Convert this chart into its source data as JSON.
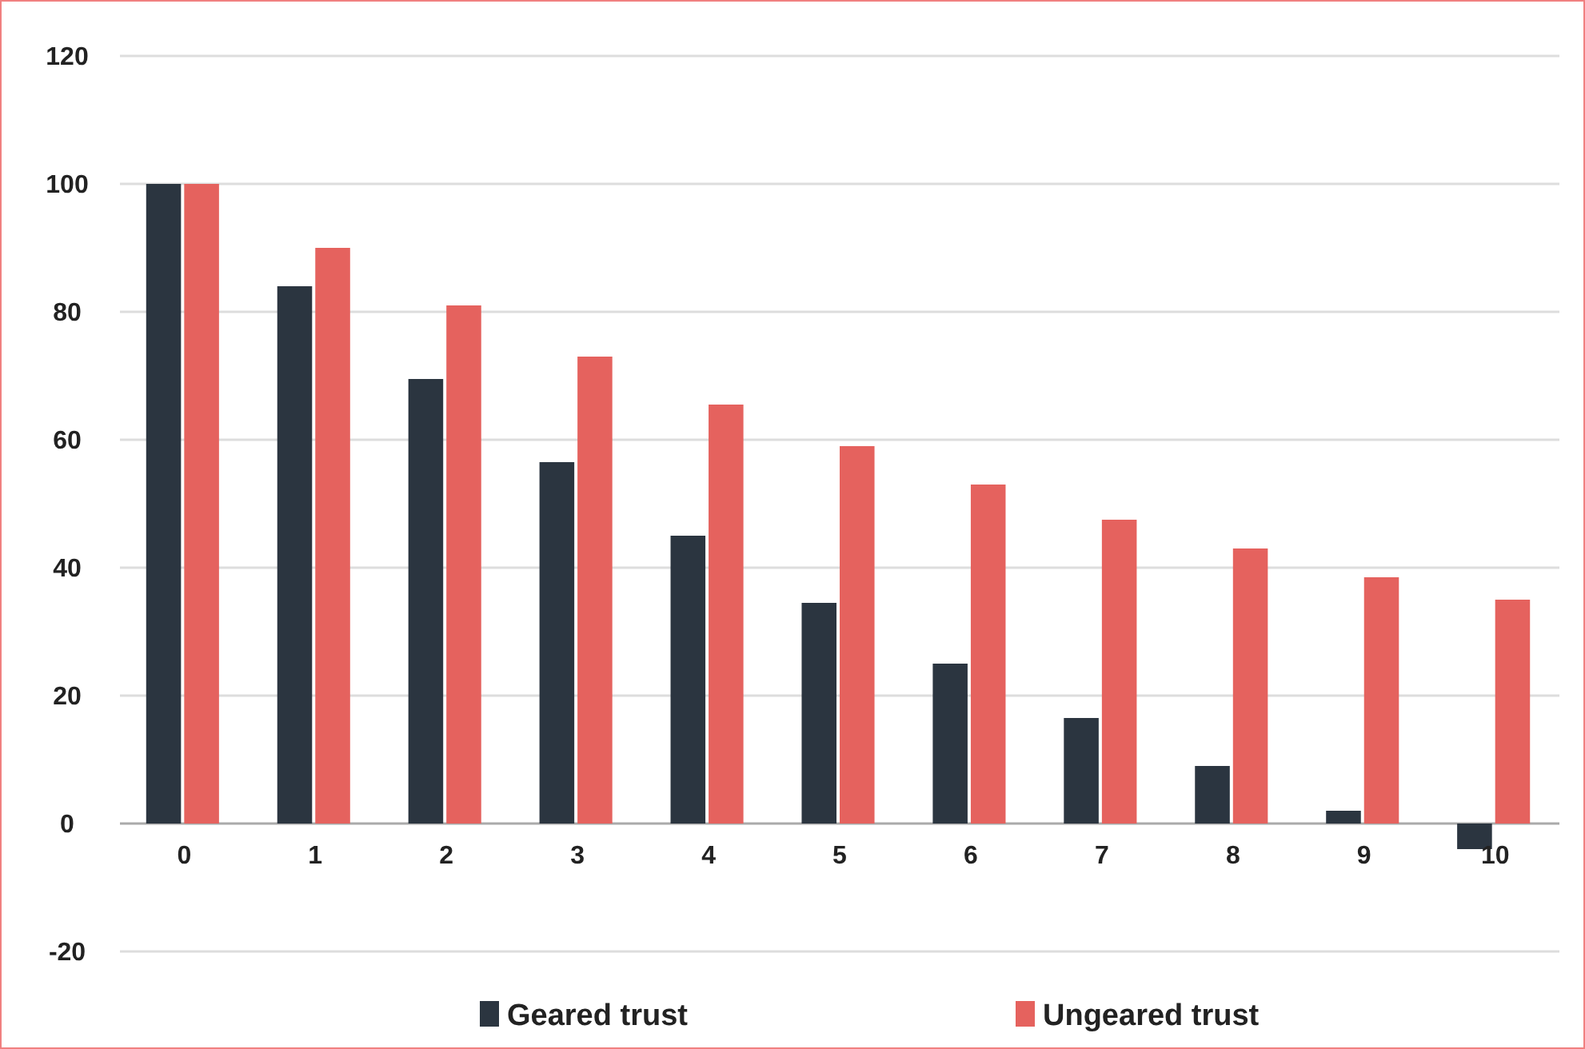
{
  "chart_data": {
    "type": "bar",
    "categories": [
      "0",
      "1",
      "2",
      "3",
      "4",
      "5",
      "6",
      "7",
      "8",
      "9",
      "10"
    ],
    "series": [
      {
        "name": "Geared trust",
        "color": "#2b3540",
        "values": [
          100,
          84,
          69.5,
          56.5,
          45,
          34.5,
          25,
          16.5,
          9,
          2,
          -4
        ]
      },
      {
        "name": "Ungeared trust",
        "color": "#e5625e",
        "values": [
          100,
          90,
          81,
          73,
          65.5,
          59,
          53,
          47.5,
          43,
          38.5,
          35
        ]
      }
    ],
    "ylim": [
      -20,
      120
    ],
    "yticks": [
      -20,
      0,
      20,
      40,
      60,
      80,
      100,
      120
    ],
    "grid": "y",
    "legend": "bottom"
  }
}
